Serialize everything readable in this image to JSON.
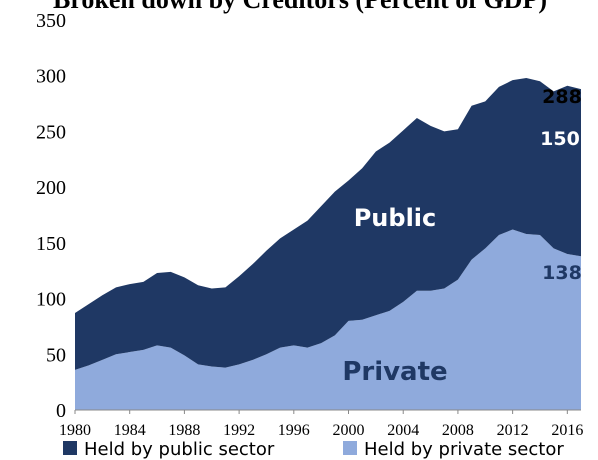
{
  "chart_data": {
    "type": "stacked_area",
    "title": "Broken down by Creditors (Percent of GDP)",
    "x": [
      1980,
      1981,
      1982,
      1983,
      1984,
      1985,
      1986,
      1987,
      1988,
      1989,
      1990,
      1991,
      1992,
      1993,
      1994,
      1995,
      1996,
      1997,
      1998,
      1999,
      2000,
      2001,
      2002,
      2003,
      2004,
      2005,
      2006,
      2007,
      2008,
      2009,
      2010,
      2011,
      2012,
      2013,
      2014,
      2015,
      2016,
      2017
    ],
    "series": [
      {
        "name": "Held by private sector",
        "color": "#8faadc",
        "values": [
          36,
          40,
          45,
          50,
          52,
          54,
          58,
          56,
          49,
          41,
          39,
          38,
          41,
          45,
          50,
          56,
          58,
          56,
          60,
          67,
          80,
          81,
          85,
          89,
          97,
          107,
          107,
          109,
          117,
          135,
          145,
          157,
          162,
          158,
          157,
          145,
          140,
          138
        ]
      },
      {
        "name": "Held by public sector",
        "color": "#1f3864",
        "values": [
          51,
          55,
          58,
          60,
          61,
          61,
          65,
          68,
          70,
          71,
          70,
          72,
          79,
          86,
          93,
          98,
          104,
          114,
          123,
          129,
          126,
          136,
          147,
          151,
          154,
          155,
          148,
          141,
          135,
          138,
          132,
          133,
          134,
          140,
          138,
          141,
          151,
          150
        ]
      }
    ],
    "xlim": [
      1980,
      2017
    ],
    "xticks": [
      1980,
      1984,
      1988,
      1992,
      1996,
      2000,
      2004,
      2008,
      2012,
      2016
    ],
    "ylim": [
      0,
      350
    ],
    "yticks": [
      0,
      50,
      100,
      150,
      200,
      250,
      300,
      350
    ],
    "annotations": [
      "288",
      "150",
      "138",
      "Public",
      "Private"
    ]
  }
}
